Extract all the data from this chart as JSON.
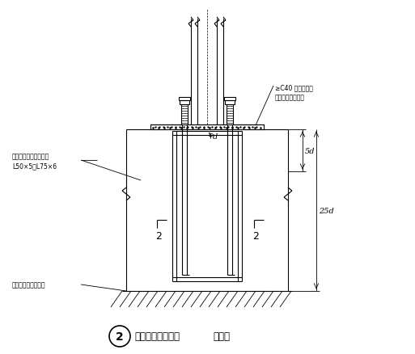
{
  "background_color": "#ffffff",
  "line_color": "#000000",
  "title": "柱脚锚栓固定支架",
  "title_number": "2",
  "subtitle": "（二）",
  "annotation1": "≥C40 无收缩碎石",
  "annotation2": "混凝土或细石砂浆",
  "annotation3": "锚栓固定角钢，通常用",
  "annotation4": "L50×5～L75×6",
  "annotation5": "锚栓固定架设置标高",
  "dim_label1": "5d",
  "dim_label2": "25d",
  "dim_label3": "d"
}
